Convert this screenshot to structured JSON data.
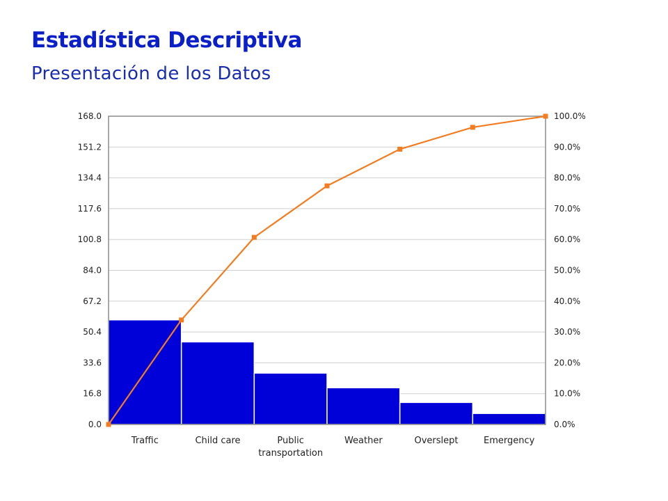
{
  "slide": {
    "title": "Estadística Descriptiva",
    "subtitle": "Presentación de los Datos"
  },
  "colors": {
    "bars": "#0000d8",
    "line": "#f47c20",
    "grid": "#cfcfcf",
    "frame": "#8c8c8c"
  },
  "chart_data": {
    "type": "bar",
    "categories": [
      "Traffic",
      "Child care",
      "Public transportation",
      "Weather",
      "Overslept",
      "Emergency"
    ],
    "category_labels": [
      [
        "Traffic"
      ],
      [
        "Child care"
      ],
      [
        "Public",
        "transportation"
      ],
      [
        "Weather"
      ],
      [
        "Overslept"
      ],
      [
        "Emergency"
      ]
    ],
    "values": [
      57,
      45,
      28,
      20,
      12,
      6
    ],
    "left_axis": {
      "ylim": [
        0,
        168
      ],
      "ticks": [
        "0.0",
        "16.8",
        "33.6",
        "50.4",
        "67.2",
        "84.0",
        "100.8",
        "117.6",
        "134.4",
        "151.2",
        "168.0"
      ]
    },
    "right_axis": {
      "ylim": [
        0,
        100
      ],
      "ticks": [
        "0.0%",
        "10.0%",
        "20.0%",
        "30.0%",
        "40.0%",
        "50.0%",
        "60.0%",
        "70.0%",
        "80.0%",
        "90.0%",
        "100.0%"
      ]
    },
    "cumulative_percent": {
      "type": "line",
      "x": [
        0,
        1,
        2,
        3,
        4,
        5,
        6
      ],
      "values": [
        0,
        33.9,
        60.7,
        77.4,
        89.3,
        96.4,
        100
      ]
    },
    "grid": true,
    "legend": "none"
  }
}
